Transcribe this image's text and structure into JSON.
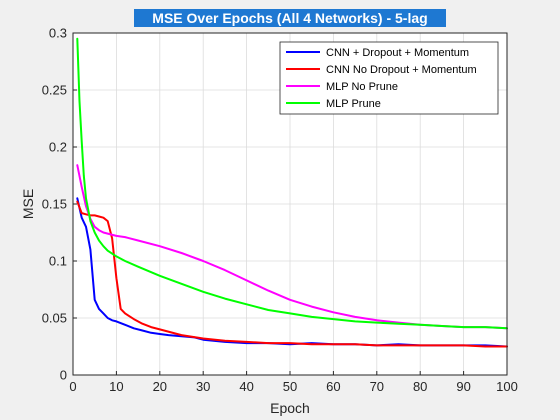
{
  "chart_data": {
    "type": "line",
    "title": "MSE Over Epochs (All 4 Networks) - 5-lag",
    "xlabel": "Epoch",
    "ylabel": "MSE",
    "xlim": [
      0,
      100
    ],
    "ylim": [
      0,
      0.3
    ],
    "xticks": [
      0,
      10,
      20,
      30,
      40,
      50,
      60,
      70,
      80,
      90,
      100
    ],
    "yticks": [
      0,
      0.05,
      0.1,
      0.15,
      0.2,
      0.25,
      0.3
    ],
    "ytick_labels": [
      "0",
      "0.05",
      "0.1",
      "0.15",
      "0.2",
      "0.25",
      "0.3"
    ],
    "grid": true,
    "legend_position": "top-right",
    "series": [
      {
        "name": "CNN + Dropout + Momentum",
        "color": "#0000ff",
        "x": [
          1,
          2,
          3,
          4,
          5,
          6,
          7,
          8,
          9,
          10,
          12,
          14,
          16,
          18,
          20,
          22,
          25,
          28,
          30,
          35,
          40,
          45,
          50,
          55,
          60,
          65,
          70,
          75,
          80,
          85,
          90,
          95,
          100
        ],
        "y": [
          0.155,
          0.138,
          0.13,
          0.11,
          0.066,
          0.058,
          0.054,
          0.05,
          0.048,
          0.047,
          0.044,
          0.041,
          0.039,
          0.037,
          0.036,
          0.035,
          0.034,
          0.033,
          0.031,
          0.029,
          0.028,
          0.028,
          0.027,
          0.028,
          0.027,
          0.027,
          0.026,
          0.027,
          0.026,
          0.026,
          0.026,
          0.026,
          0.025
        ]
      },
      {
        "name": "CNN No Dropout + Momentum",
        "color": "#ff0000",
        "x": [
          1,
          2,
          3,
          4,
          5,
          6,
          7,
          8,
          9,
          10,
          11,
          12,
          14,
          16,
          18,
          20,
          25,
          30,
          35,
          40,
          45,
          50,
          55,
          60,
          65,
          70,
          75,
          80,
          85,
          90,
          95,
          100
        ],
        "y": [
          0.152,
          0.142,
          0.141,
          0.14,
          0.14,
          0.139,
          0.138,
          0.135,
          0.12,
          0.085,
          0.058,
          0.054,
          0.049,
          0.045,
          0.042,
          0.04,
          0.035,
          0.032,
          0.03,
          0.029,
          0.028,
          0.028,
          0.027,
          0.027,
          0.027,
          0.026,
          0.026,
          0.026,
          0.026,
          0.026,
          0.025,
          0.025
        ]
      },
      {
        "name": "MLP No Prune",
        "color": "#ff00ff",
        "x": [
          1,
          2,
          3,
          4,
          5,
          6,
          7,
          8,
          10,
          12,
          15,
          20,
          25,
          30,
          35,
          40,
          45,
          50,
          55,
          60,
          65,
          70,
          75,
          80,
          85,
          90,
          95,
          100
        ],
        "y": [
          0.184,
          0.165,
          0.148,
          0.137,
          0.13,
          0.127,
          0.125,
          0.124,
          0.122,
          0.121,
          0.118,
          0.113,
          0.107,
          0.1,
          0.092,
          0.083,
          0.074,
          0.066,
          0.06,
          0.055,
          0.051,
          0.048,
          0.046,
          0.044,
          0.043,
          0.042,
          0.042,
          0.041
        ]
      },
      {
        "name": "MLP Prune",
        "color": "#00ff00",
        "x": [
          1,
          1.5,
          2,
          2.5,
          3,
          4,
          5,
          6,
          7,
          8,
          10,
          12,
          15,
          20,
          25,
          30,
          35,
          40,
          45,
          50,
          55,
          60,
          65,
          70,
          75,
          80,
          85,
          90,
          95,
          100
        ],
        "y": [
          0.295,
          0.24,
          0.205,
          0.175,
          0.155,
          0.135,
          0.125,
          0.118,
          0.113,
          0.109,
          0.104,
          0.1,
          0.095,
          0.087,
          0.08,
          0.073,
          0.067,
          0.062,
          0.057,
          0.054,
          0.051,
          0.049,
          0.047,
          0.046,
          0.045,
          0.044,
          0.043,
          0.042,
          0.042,
          0.041
        ]
      }
    ]
  }
}
